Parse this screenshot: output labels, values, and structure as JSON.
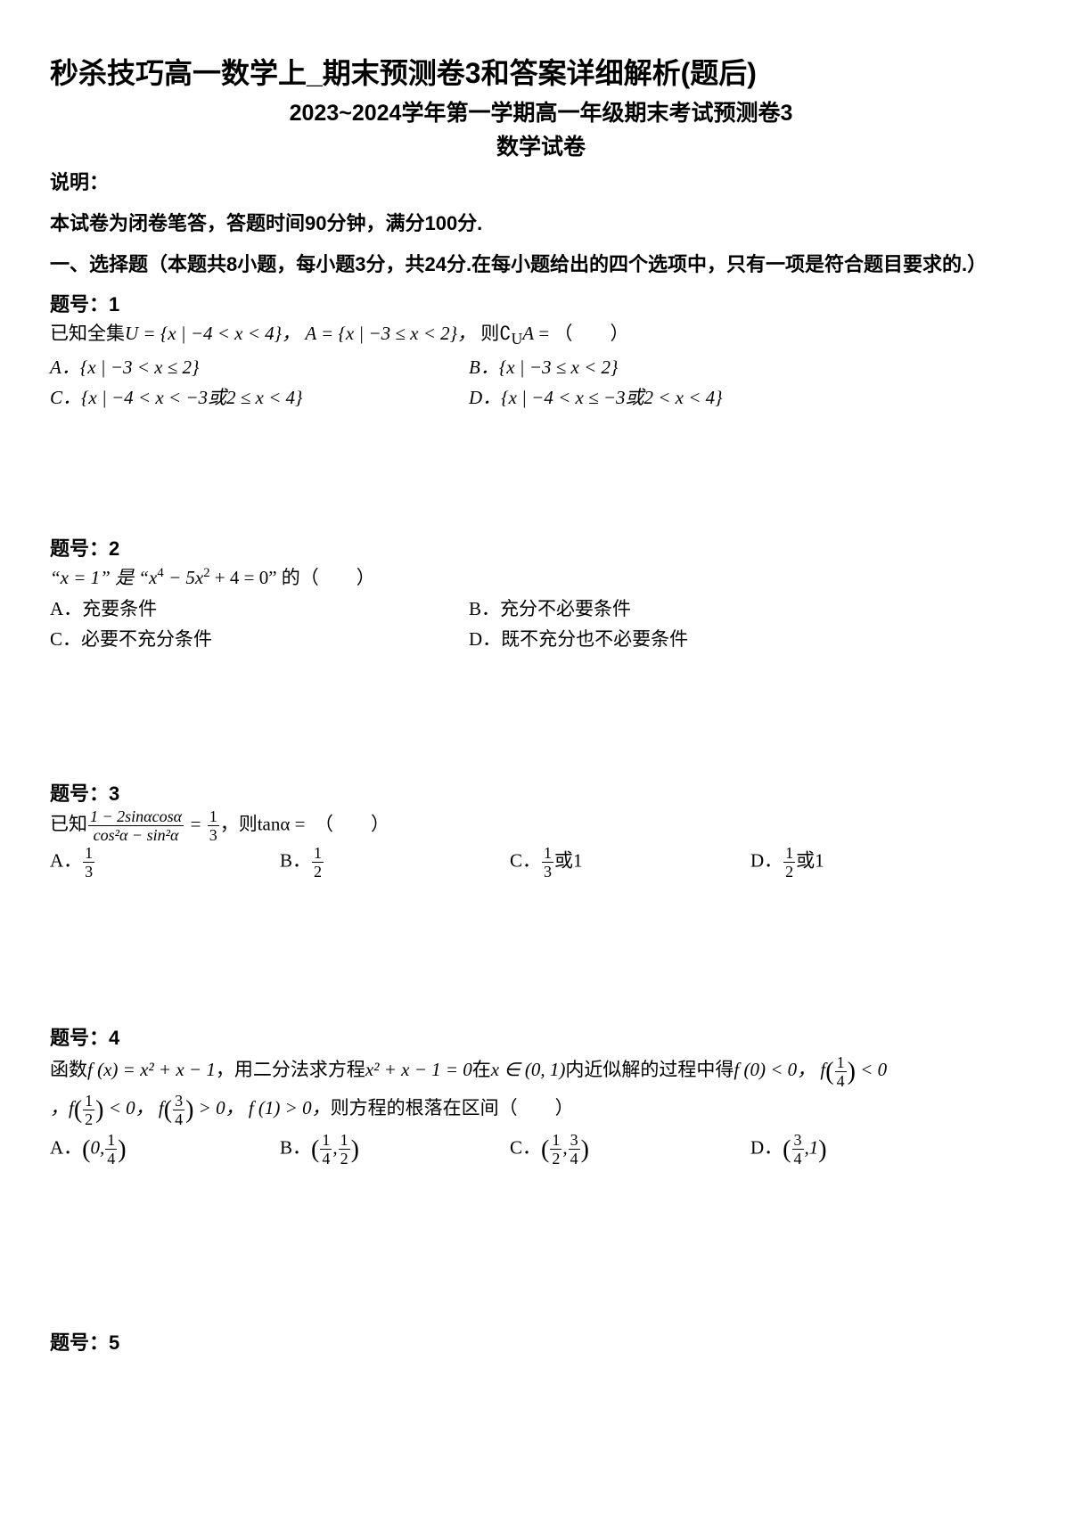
{
  "page": {
    "bg": "#ffffff",
    "text_color": "#000000",
    "main_title": "秒杀技巧高一数学上_期末预测卷3和答案详细解析(题后)",
    "subtitle1": "2023~2024学年第一学期高一年级期末考试预测卷3",
    "subtitle2": "数学试卷",
    "instruction_label": "说明：",
    "instruction_text": "本试卷为闭卷笔答，答题时间90分钟，满分100分.",
    "section_head": "一、选择题（本题共8小题，每小题3分，共24分.在每小题给出的四个选项中，只有一项是符合题目要求的.）"
  },
  "q1": {
    "num": "题号：1",
    "stem_prefix": "已知全集",
    "stem_U": "U = {x | −4 < x < 4}，",
    "stem_A": "A = {x | −3 ≤ x < 2}，",
    "stem_suffix": "则",
    "stem_comp": "∁_U A =",
    "paren": "（　　）",
    "optA": "A．{x | −3 < x ≤ 2}",
    "optB": "B．{x | −3 ≤ x < 2}",
    "optC": "C．{x | −4 < x < −3或2 ≤ x < 4}",
    "optD": "D．{x | −4 < x ≤ −3或2 < x < 4}"
  },
  "q2": {
    "num": "题号：2",
    "stem_a": "“x = 1” 是 “x",
    "stem_b": " − 5x",
    "stem_c": " + 4 = 0” 的（　　）",
    "optA": "A．充要条件",
    "optB": "B．充分不必要条件",
    "optC": "C．必要不充分条件",
    "optD": "D．既不充分也不必要条件"
  },
  "q3": {
    "num": "题号：3",
    "stem_prefix": "已知",
    "frac_num": "1 − 2sinαcosα",
    "frac_den": "cos²α − sin²α",
    "eq": " = ",
    "rhs_num": "1",
    "rhs_den": "3",
    "stem_suffix": "，则tanα =　（　　）",
    "optA_label": "A．",
    "optA_num": "1",
    "optA_den": "3",
    "optB_label": "B．",
    "optB_num": "1",
    "optB_den": "2",
    "optC_label": "C．",
    "optC_num": "1",
    "optC_den": "3",
    "optC_suffix": "或1",
    "optD_label": "D．",
    "optD_num": "1",
    "optD_den": "2",
    "optD_suffix": "或1"
  },
  "q4": {
    "num": "题号：4",
    "stem_p1": "函数",
    "stem_fx": "f (x) = x² + x − 1",
    "stem_p2": "，用二分法求方程",
    "stem_eq": "x² + x − 1 = 0",
    "stem_p3": "在",
    "stem_in": "x ∈ (0, 1)",
    "stem_p4": "内近似解的过程中得",
    "f0": "f (0) < 0，",
    "f14_a": "f",
    "f14_num": "1",
    "f14_den": "4",
    "f14_b": " < 0",
    "f12_a": "，f",
    "f12_num": "1",
    "f12_den": "2",
    "f12_b": " < 0，",
    "f34_a": "f",
    "f34_num": "3",
    "f34_den": "4",
    "f34_b": " > 0，",
    "f1": "f (1) > 0，",
    "stem_tail": "则方程的根落在区间（　　）",
    "optA_label": "A．",
    "optA_a": "0,",
    "optA_num": "1",
    "optA_den": "4",
    "optB_label": "B．",
    "optB_a_num": "1",
    "optB_a_den": "4",
    "optB_sep": ",",
    "optB_b_num": "1",
    "optB_b_den": "2",
    "optC_label": "C．",
    "optC_a_num": "1",
    "optC_a_den": "2",
    "optC_sep": ",",
    "optC_b_num": "3",
    "optC_b_den": "4",
    "optD_label": "D．",
    "optD_a_num": "3",
    "optD_a_den": "4",
    "optD_sep": ",",
    "optD_b": "1"
  },
  "q5": {
    "num": "题号：5"
  }
}
